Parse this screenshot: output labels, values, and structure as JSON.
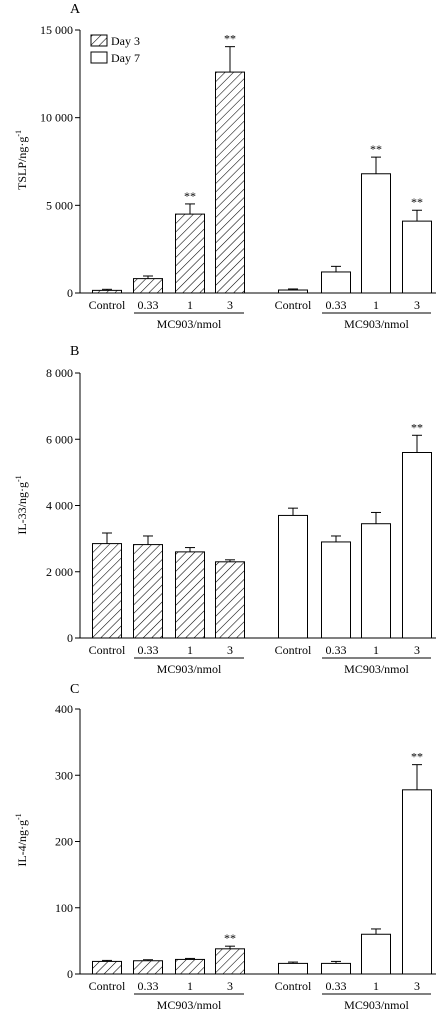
{
  "legend": {
    "items": [
      {
        "label": "Day 3",
        "pattern": "hatch"
      },
      {
        "label": "Day 7",
        "pattern": "open"
      }
    ]
  },
  "colors": {
    "axis": "#000000",
    "bar_fill_open": "#ffffff",
    "hatch": "#000000"
  },
  "chart_data": [
    {
      "panel_label": "A",
      "type": "bar",
      "ylabel": "TSLP/ng·g",
      "ylabel_superscript": "-1",
      "ylim": [
        0,
        15000
      ],
      "yticks": [
        0,
        5000,
        10000,
        15000
      ],
      "ytick_labels": [
        "0",
        "5 000",
        "10 000",
        "15 000"
      ],
      "categories": [
        "Control",
        "0.33",
        "1",
        "3"
      ],
      "group_label": "MC903/nmol",
      "legend_position": "top-left",
      "series": [
        {
          "name": "Day 3",
          "pattern": "hatch",
          "values": [
            150,
            820,
            4500,
            12600
          ],
          "errors": [
            60,
            150,
            580,
            1450
          ],
          "significance": [
            "",
            "",
            "**",
            "**"
          ]
        },
        {
          "name": "Day 7",
          "pattern": "open",
          "values": [
            170,
            1200,
            6800,
            4100
          ],
          "errors": [
            60,
            320,
            950,
            620
          ],
          "significance": [
            "",
            "",
            "**",
            "**"
          ]
        }
      ]
    },
    {
      "panel_label": "B",
      "type": "bar",
      "ylabel": "IL-33/ng·g",
      "ylabel_superscript": "-1",
      "ylim": [
        0,
        8000
      ],
      "yticks": [
        0,
        2000,
        4000,
        6000,
        8000
      ],
      "ytick_labels": [
        "0",
        "2 000",
        "4 000",
        "6 000",
        "8 000"
      ],
      "categories": [
        "Control",
        "0.33",
        "1",
        "3"
      ],
      "group_label": "MC903/nmol",
      "series": [
        {
          "name": "Day 3",
          "pattern": "hatch",
          "values": [
            2850,
            2820,
            2600,
            2300
          ],
          "errors": [
            320,
            260,
            130,
            60
          ],
          "significance": [
            "",
            "",
            "",
            ""
          ]
        },
        {
          "name": "Day 7",
          "pattern": "open",
          "values": [
            3700,
            2900,
            3450,
            5600
          ],
          "errors": [
            220,
            180,
            340,
            520
          ],
          "significance": [
            "",
            "",
            "",
            "**"
          ]
        }
      ]
    },
    {
      "panel_label": "C",
      "type": "bar",
      "ylabel": "IL-4/ng·g",
      "ylabel_superscript": "-1",
      "ylim": [
        0,
        400
      ],
      "yticks": [
        0,
        100,
        200,
        300,
        400
      ],
      "ytick_labels": [
        "0",
        "100",
        "200",
        "300",
        "400"
      ],
      "categories": [
        "Control",
        "0.33",
        "1",
        "3"
      ],
      "group_label": "MC903/nmol",
      "series": [
        {
          "name": "Day 3",
          "pattern": "hatch",
          "values": [
            19,
            20,
            22,
            38
          ],
          "errors": [
            1.5,
            1.5,
            1.5,
            4
          ],
          "significance": [
            "",
            "",
            "",
            "**"
          ]
        },
        {
          "name": "Day 7",
          "pattern": "open",
          "values": [
            16,
            16,
            60,
            278
          ],
          "errors": [
            2,
            3,
            8,
            38
          ],
          "significance": [
            "",
            "",
            "",
            "**"
          ]
        }
      ]
    }
  ]
}
